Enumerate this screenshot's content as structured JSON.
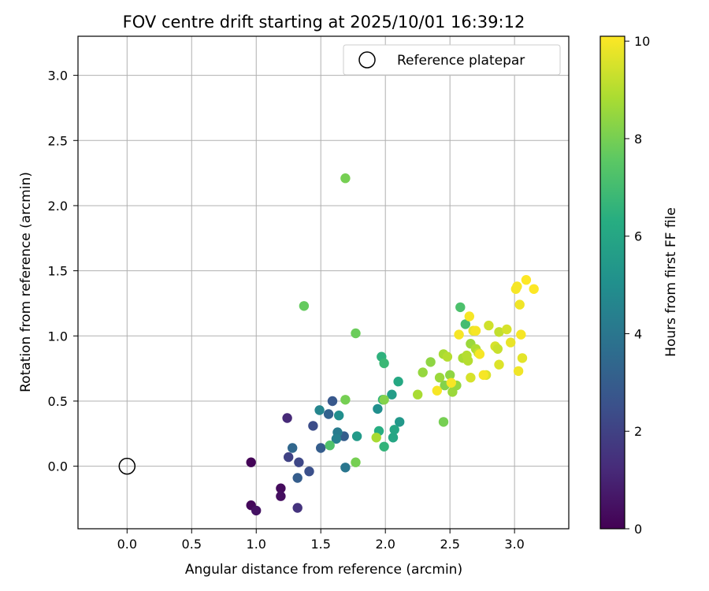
{
  "chart_data": {
    "type": "scatter",
    "title": "FOV centre drift starting at 2025/10/01 16:39:12",
    "xlabel": "Angular distance from reference (arcmin)",
    "ylabel": "Rotation from reference (arcmin)",
    "xlim": [
      -0.38,
      3.42
    ],
    "ylim": [
      -0.48,
      3.3
    ],
    "xticks": [
      0.0,
      0.5,
      1.0,
      1.5,
      2.0,
      2.5,
      3.0
    ],
    "yticks": [
      0.0,
      0.5,
      1.0,
      1.5,
      2.0,
      2.5,
      3.0
    ],
    "xtick_labels": [
      "0.0",
      "0.5",
      "1.0",
      "1.5",
      "2.0",
      "2.5",
      "3.0"
    ],
    "ytick_labels": [
      "0.0",
      "0.5",
      "1.0",
      "1.5",
      "2.0",
      "2.5",
      "3.0"
    ],
    "grid": true,
    "colormap": "viridis",
    "colorbar": {
      "label": "Hours from first FF file",
      "range": [
        0,
        10.1
      ],
      "ticks": [
        0,
        2,
        4,
        6,
        8,
        10
      ],
      "tick_labels": [
        "0",
        "2",
        "4",
        "6",
        "8",
        "10"
      ]
    },
    "legend": {
      "position": "top-right",
      "entries": [
        "Reference platepar"
      ]
    },
    "reference": {
      "x": 0.0,
      "y": 0.0,
      "label": "Reference platepar"
    },
    "points": [
      [
        0.96,
        0.03,
        0.1
      ],
      [
        0.96,
        -0.3,
        0.2
      ],
      [
        1.0,
        -0.34,
        0.5
      ],
      [
        1.19,
        -0.17,
        0.3
      ],
      [
        1.19,
        -0.23,
        0.4
      ],
      [
        1.24,
        0.37,
        1.2
      ],
      [
        1.32,
        -0.32,
        1.5
      ],
      [
        1.25,
        0.07,
        2.0
      ],
      [
        1.33,
        0.03,
        2.2
      ],
      [
        1.41,
        -0.04,
        2.5
      ],
      [
        1.44,
        0.31,
        2.4
      ],
      [
        1.32,
        -0.09,
        3.0
      ],
      [
        1.28,
        0.14,
        3.4
      ],
      [
        1.5,
        0.14,
        3.0
      ],
      [
        1.59,
        0.5,
        2.8
      ],
      [
        1.56,
        0.4,
        3.2
      ],
      [
        1.68,
        0.23,
        3.0
      ],
      [
        1.69,
        -0.01,
        4.0
      ],
      [
        1.63,
        0.26,
        4.2
      ],
      [
        1.62,
        0.21,
        4.4
      ],
      [
        1.49,
        0.43,
        4.6
      ],
      [
        1.64,
        0.39,
        5.0
      ],
      [
        1.78,
        0.23,
        5.5
      ],
      [
        1.94,
        0.44,
        5.0
      ],
      [
        2.11,
        0.34,
        5.4
      ],
      [
        2.05,
        0.55,
        5.6
      ],
      [
        2.06,
        0.22,
        6.0
      ],
      [
        2.07,
        0.28,
        6.0
      ],
      [
        1.95,
        0.27,
        6.3
      ],
      [
        2.1,
        0.65,
        6.1
      ],
      [
        1.97,
        0.84,
        6.5
      ],
      [
        1.99,
        0.79,
        6.8
      ],
      [
        1.98,
        0.51,
        6.6
      ],
      [
        1.99,
        0.15,
        6.6
      ],
      [
        2.58,
        1.22,
        7.2
      ],
      [
        2.62,
        1.09,
        7.0
      ],
      [
        1.57,
        0.16,
        7.3
      ],
      [
        1.37,
        1.23,
        7.7
      ],
      [
        1.77,
        1.02,
        7.8
      ],
      [
        1.69,
        2.21,
        8.0
      ],
      [
        1.69,
        0.51,
        8.0
      ],
      [
        1.77,
        0.03,
        8.0
      ],
      [
        1.99,
        0.51,
        8.2
      ],
      [
        1.93,
        0.22,
        8.8
      ],
      [
        2.25,
        0.55,
        8.8
      ],
      [
        2.29,
        0.72,
        8.5
      ],
      [
        2.35,
        0.8,
        8.4
      ],
      [
        2.45,
        0.34,
        8.0
      ],
      [
        2.42,
        0.68,
        8.6
      ],
      [
        2.45,
        0.86,
        8.8
      ],
      [
        2.48,
        0.84,
        9.0
      ],
      [
        2.46,
        0.62,
        8.2
      ],
      [
        2.5,
        0.7,
        8.4
      ],
      [
        2.52,
        0.57,
        8.6
      ],
      [
        2.55,
        0.62,
        8.5
      ],
      [
        2.6,
        0.83,
        8.8
      ],
      [
        2.63,
        0.85,
        9.0
      ],
      [
        2.64,
        0.81,
        9.0
      ],
      [
        2.66,
        0.94,
        8.6
      ],
      [
        2.66,
        0.68,
        9.5
      ],
      [
        2.7,
        0.9,
        8.9
      ],
      [
        2.72,
        0.87,
        9.2
      ],
      [
        2.78,
        0.7,
        9.6
      ],
      [
        2.8,
        1.08,
        9.4
      ],
      [
        2.85,
        0.92,
        9.5
      ],
      [
        2.87,
        0.9,
        9.3
      ],
      [
        2.88,
        1.03,
        9.2
      ],
      [
        2.88,
        0.78,
        9.6
      ],
      [
        2.94,
        1.05,
        9.5
      ],
      [
        2.97,
        0.95,
        9.8
      ],
      [
        2.4,
        0.58,
        10.0
      ],
      [
        2.51,
        0.64,
        10.0
      ],
      [
        2.57,
        1.01,
        10.0
      ],
      [
        2.65,
        1.15,
        10.0
      ],
      [
        2.68,
        1.04,
        9.8
      ],
      [
        2.7,
        1.04,
        10.0
      ],
      [
        2.73,
        0.86,
        10.0
      ],
      [
        2.76,
        0.7,
        10.0
      ],
      [
        3.01,
        1.36,
        10.0
      ],
      [
        3.02,
        1.38,
        10.0
      ],
      [
        3.03,
        0.73,
        9.9
      ],
      [
        3.04,
        1.24,
        9.9
      ],
      [
        3.05,
        1.01,
        10.0
      ],
      [
        3.06,
        0.83,
        9.7
      ],
      [
        3.09,
        1.43,
        10.1
      ],
      [
        3.15,
        1.36,
        10.1
      ]
    ]
  }
}
